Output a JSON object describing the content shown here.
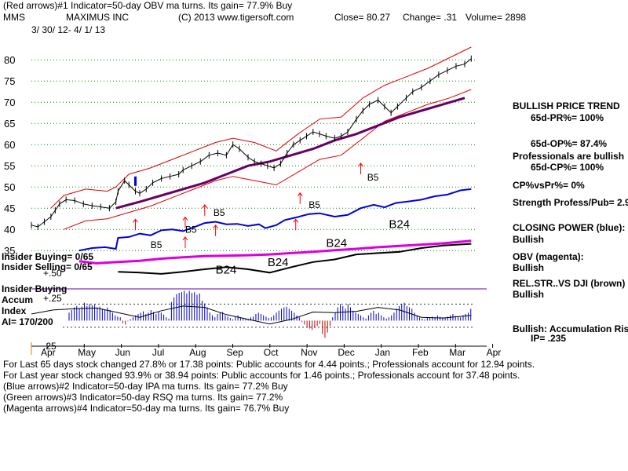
{
  "header": {
    "line1": "(Red arrows)#1 Indicator=50-day OBV ma turns. Its gain= 77.9% Buy",
    "symbol": "MMS",
    "company": "MAXIMUS INC",
    "copyright": "(C) 2013 www.tigersoft.com",
    "close": "Close=  80.27",
    "change": "Change= .31",
    "volume": "Volume= 2898",
    "date_range": "3/ 30/ 12-  4/ 1/ 13"
  },
  "right_panel": {
    "trend_title": "BULLISH PRICE TREND",
    "pr": "65d-PR%= 100%",
    "op": "65d-OP%= 87.4%",
    "pros_bullish": "Professionals are bullish",
    "cp": "65d-CP%= 100%",
    "cpvspr": "CP%vsPr%=  0%",
    "strength": "Strength Profess/Pub= 2.9",
    "closing_power": "CLOSING POWER (blue):",
    "closing_power_val": "Bullish",
    "obv": "OBV (magenta):",
    "obv_val": "Bullish",
    "relstr": "REL.STR..VS DJI (brown)",
    "relstr_val": "Bullish",
    "accum": "Bullish: Accumulation Rising",
    "ip": "IP=  .235"
  },
  "left_labels": {
    "insider_buying": "Insider Buying= 0/65",
    "insider_selling": "Insider Selling= 0/65",
    "insider_buying2": "Insider Buying",
    "accum": "Accum",
    "index": "Index",
    "ai": "AI= 170/200"
  },
  "footer": {
    "line1": "For Last 65 days stock changed  27.8% or  17.38 points:  Public accounts for  4.44 points.;  Professionals account for  12.94 points.",
    "line2": "For Last year stock changed  93.9% or  38.94 points:  Public accounts for  1.46 points.;  Professionals account for  37.48 points.",
    "line3": "(Blue arrows)#2 Indicator=50-day IPA ma turns. Its gain= 77.2% Buy",
    "line4": "(Green arrows)#3 Indicator=50-day RSQ ma turns. Its gain= 77.2%",
    "line5": "(Magenta arrows)#4 Indicator=50-day ma turns. Its gain= 76.7% Buy"
  },
  "colors": {
    "price": "#000000",
    "band": "#dd0000",
    "ma": "#660066",
    "closing_power": "#0000dd",
    "obv": "#dd00dd",
    "relstr": "#000000",
    "accum_pos": "#0000cc",
    "accum_neg": "#cc0000",
    "grid": "#008800",
    "arrow": "#ff0000"
  },
  "chart_data": {
    "type": "line",
    "title": "MAXIMUS INC (MMS)",
    "x_ticks": [
      "Apr",
      "May",
      "Jun",
      "Jul",
      "Aug",
      "Sep",
      "Oct",
      "Nov",
      "Dec",
      "Jan",
      "Feb",
      "Mar",
      "Apr"
    ],
    "y_ticks": [
      80,
      75,
      70,
      65,
      60,
      55,
      50,
      45,
      40,
      35
    ],
    "ylim": [
      33,
      83
    ],
    "accum_ticks": [
      "+.50",
      "+.25",
      ".25"
    ],
    "price_points": [
      [
        0,
        41
      ],
      [
        0.3,
        40.6
      ],
      [
        0.6,
        41.8
      ],
      [
        0.9,
        43
      ],
      [
        1.1,
        44.5
      ],
      [
        1.3,
        46
      ],
      [
        1.6,
        47
      ],
      [
        2,
        46.8
      ],
      [
        2.4,
        46
      ],
      [
        2.8,
        45.6
      ],
      [
        3.2,
        45.3
      ],
      [
        3.6,
        45
      ],
      [
        3.9,
        46.5
      ],
      [
        4,
        49
      ],
      [
        4.3,
        51.5
      ],
      [
        4.5,
        50.5
      ],
      [
        4.8,
        49
      ],
      [
        5,
        48.5
      ],
      [
        5.3,
        49.5
      ],
      [
        5.6,
        51
      ],
      [
        6,
        52
      ],
      [
        6.4,
        52.5
      ],
      [
        6.8,
        53
      ],
      [
        7,
        54
      ],
      [
        7.4,
        55
      ],
      [
        7.8,
        56
      ],
      [
        8.2,
        57.5
      ],
      [
        8.6,
        58
      ],
      [
        9,
        57.5
      ],
      [
        9.3,
        60
      ],
      [
        9.6,
        59
      ],
      [
        10,
        57
      ],
      [
        10.3,
        56
      ],
      [
        10.6,
        55.5
      ],
      [
        10.9,
        55
      ],
      [
        11.2,
        54.5
      ],
      [
        11.5,
        55.5
      ],
      [
        11.8,
        58
      ],
      [
        12.1,
        60
      ],
      [
        12.4,
        61
      ],
      [
        12.7,
        62
      ],
      [
        13,
        63
      ],
      [
        13.3,
        62.5
      ],
      [
        13.6,
        62
      ],
      [
        14,
        61.5
      ],
      [
        14.3,
        62
      ],
      [
        14.6,
        63
      ],
      [
        15,
        66
      ],
      [
        15.3,
        68
      ],
      [
        15.6,
        69.5
      ],
      [
        16,
        70.5
      ],
      [
        16.3,
        69
      ],
      [
        16.6,
        67.5
      ],
      [
        16.9,
        69
      ],
      [
        17.3,
        71
      ],
      [
        17.6,
        72.5
      ],
      [
        18,
        73.5
      ],
      [
        18.4,
        75
      ],
      [
        18.8,
        76.5
      ],
      [
        19.2,
        77.5
      ],
      [
        19.6,
        78.5
      ],
      [
        20,
        79
      ],
      [
        20.3,
        80.27
      ]
    ],
    "ma50_points": [
      [
        3.9,
        45
      ],
      [
        5,
        46.5
      ],
      [
        6,
        48
      ],
      [
        7,
        49.5
      ],
      [
        8,
        51
      ],
      [
        9,
        53
      ],
      [
        10,
        55
      ],
      [
        11,
        56
      ],
      [
        12,
        57.5
      ],
      [
        13,
        59
      ],
      [
        14,
        61
      ],
      [
        15,
        62.5
      ],
      [
        16,
        64.5
      ],
      [
        17,
        66.5
      ],
      [
        18,
        68
      ],
      [
        19,
        69.5
      ],
      [
        20,
        71
      ]
    ],
    "upper_band_points": [
      [
        0.9,
        45
      ],
      [
        1.5,
        48
      ],
      [
        2.5,
        49.5
      ],
      [
        3.5,
        49
      ],
      [
        3.9,
        50
      ],
      [
        4.5,
        53
      ],
      [
        5.5,
        54.5
      ],
      [
        6.5,
        56.5
      ],
      [
        7.5,
        58.5
      ],
      [
        8.5,
        60.5
      ],
      [
        9.3,
        61.5
      ],
      [
        10.3,
        60.5
      ],
      [
        11.3,
        58.5
      ],
      [
        12.3,
        62.5
      ],
      [
        13.3,
        66
      ],
      [
        14.3,
        66.5
      ],
      [
        15.3,
        71
      ],
      [
        16.3,
        74
      ],
      [
        17.3,
        76
      ],
      [
        18.3,
        78
      ],
      [
        19.3,
        80.5
      ],
      [
        20.3,
        83
      ]
    ],
    "lower_band_points": [
      [
        1.5,
        40
      ],
      [
        2.5,
        42
      ],
      [
        3.5,
        42.5
      ],
      [
        4.5,
        44
      ],
      [
        5.5,
        45.5
      ],
      [
        6.5,
        47.5
      ],
      [
        7.5,
        49.5
      ],
      [
        8.5,
        51.5
      ],
      [
        9.3,
        52.5
      ],
      [
        10.3,
        51.5
      ],
      [
        11.3,
        50.5
      ],
      [
        12.3,
        53.5
      ],
      [
        13.3,
        56.5
      ],
      [
        14.3,
        57.5
      ],
      [
        15.3,
        61.5
      ],
      [
        16.3,
        65.5
      ],
      [
        17.3,
        67.5
      ],
      [
        18.3,
        69.5
      ],
      [
        19.3,
        71
      ],
      [
        20.3,
        73
      ]
    ],
    "closing_power_points": [
      [
        2.2,
        35
      ],
      [
        2.8,
        35.6
      ],
      [
        3.4,
        35.8
      ],
      [
        3.9,
        35.4
      ],
      [
        4,
        38
      ],
      [
        4.5,
        38.2
      ],
      [
        5,
        39
      ],
      [
        5.5,
        38.6
      ],
      [
        6,
        39.8
      ],
      [
        6.5,
        40
      ],
      [
        7,
        39.6
      ],
      [
        7.5,
        40.5
      ],
      [
        8,
        41.5
      ],
      [
        8.5,
        41.8
      ],
      [
        9,
        41.2
      ],
      [
        9.5,
        41.3
      ],
      [
        10,
        40.8
      ],
      [
        10.5,
        41.2
      ],
      [
        10.8,
        40.3
      ],
      [
        11.3,
        41
      ],
      [
        11.7,
        42.2
      ],
      [
        12.2,
        42.8
      ],
      [
        12.8,
        43.6
      ],
      [
        13.3,
        43.8
      ],
      [
        14,
        43
      ],
      [
        14.6,
        43.4
      ],
      [
        15.2,
        45
      ],
      [
        15.8,
        45.8
      ],
      [
        16.3,
        45.2
      ],
      [
        16.8,
        46.2
      ],
      [
        17.4,
        46.6
      ],
      [
        18,
        47
      ],
      [
        18.6,
        47.8
      ],
      [
        19.2,
        48.2
      ],
      [
        19.8,
        49.2
      ],
      [
        20.3,
        49.5
      ]
    ],
    "obv_points": [
      [
        2.2,
        32.5
      ],
      [
        3,
        32
      ],
      [
        4,
        32.3
      ],
      [
        5,
        32.6
      ],
      [
        6,
        33.1
      ],
      [
        7,
        33.4
      ],
      [
        8,
        33.7
      ],
      [
        9,
        33.8
      ],
      [
        10,
        33.9
      ],
      [
        11,
        34.1
      ],
      [
        12,
        34.4
      ],
      [
        13,
        34.7
      ],
      [
        14,
        35.1
      ],
      [
        15,
        35.4
      ],
      [
        16,
        35.8
      ],
      [
        17,
        36.1
      ],
      [
        18,
        36.4
      ],
      [
        19,
        36.7
      ],
      [
        20.3,
        37.3
      ]
    ],
    "relstr_points": [
      [
        4,
        30
      ],
      [
        5,
        29.8
      ],
      [
        6,
        29.5
      ],
      [
        7,
        30
      ],
      [
        8,
        30.6
      ],
      [
        9,
        31.1
      ],
      [
        10,
        30.6
      ],
      [
        11,
        29.8
      ],
      [
        12,
        31.1
      ],
      [
        13,
        32.3
      ],
      [
        14,
        32.9
      ],
      [
        15,
        34.1
      ],
      [
        16,
        34.4
      ],
      [
        17,
        34.7
      ],
      [
        18,
        35.6
      ],
      [
        19,
        36.2
      ],
      [
        20.3,
        36.6
      ]
    ],
    "signals": [
      {
        "label": "B5",
        "x": 5.5,
        "y": 35.6
      },
      {
        "label": "B5",
        "x": 7.1,
        "y": 39.2
      },
      {
        "label": "B5",
        "x": 8.4,
        "y": 43.2
      },
      {
        "label": "B5",
        "x": 12.8,
        "y": 45
      },
      {
        "label": "B5",
        "x": 15.5,
        "y": 51.5
      },
      {
        "label": "B24",
        "x": 8.5,
        "y": 29.6
      },
      {
        "label": "B24",
        "x": 10.9,
        "y": 31.3
      },
      {
        "label": "B24",
        "x": 13.6,
        "y": 35.9
      },
      {
        "label": "B24",
        "x": 16.5,
        "y": 40.3
      }
    ],
    "red_arrows": [
      [
        4.8,
        39.8
      ],
      [
        7.1,
        35.6
      ],
      [
        7.1,
        40.3
      ],
      [
        8,
        43.2
      ],
      [
        8.5,
        38.4
      ],
      [
        12.4,
        46
      ],
      [
        12.2,
        39.8
      ],
      [
        15.2,
        53
      ]
    ],
    "blue_arrows": [
      [
        4.8,
        51
      ]
    ],
    "accum_values": [
      0.12,
      0.16,
      0.2,
      0.22,
      0.19,
      0.21,
      0.27,
      0.22,
      0.25,
      0.23,
      0.24,
      0.2,
      0.21,
      0.18,
      0.17,
      0.2,
      0.16,
      0.12,
      0.08,
      0.06,
      0.05,
      -0.04,
      -0.06,
      -0.01,
      0.02,
      0.05,
      0.08,
      0.1,
      0.12,
      0.14,
      0.1,
      0.12,
      0.16,
      0.13,
      0.1,
      0.14,
      0.12,
      0.09,
      0.05,
      0.03,
      0.28,
      0.35,
      0.4,
      0.42,
      0.43,
      0.45,
      0.41,
      0.45,
      0.42,
      0.43,
      0.39,
      0.41,
      0.3,
      0.26,
      0.2,
      0.12,
      0.08,
      0.05,
      0.1,
      0.12,
      0.13,
      0.08,
      0.06,
      0.04,
      0.02,
      0.06,
      0.08,
      0.05,
      0.04,
      0.03,
      0.02,
      0.05,
      0.06,
      0.1,
      0.12,
      0.1,
      0.08,
      0.06,
      0.04,
      0.05,
      0.08,
      0.12,
      0.15,
      0.18,
      0.2,
      0.21,
      0.18,
      0.15,
      0.12,
      0.08,
      0.05,
      -0.02,
      -0.06,
      -0.1,
      -0.12,
      -0.14,
      -0.11,
      -0.08,
      -0.05,
      -0.2,
      -0.26,
      -0.18,
      -0.08,
      0.05,
      0.12,
      0.2,
      0.25,
      0.22,
      0.18,
      0.25,
      0.2,
      0.15,
      0.12,
      0.1,
      0.08,
      0.05,
      0.03,
      0.08,
      0.12,
      0.15,
      0.1,
      0.12,
      0.08,
      0.05,
      0.03,
      0.05,
      0.08,
      0.12,
      0.18,
      0.22,
      0.25,
      0.27,
      0.22,
      0.2,
      0.18,
      0.12,
      0.08,
      0.05,
      0.03,
      0.02,
      0.05,
      0.04,
      0.06,
      0.05,
      0.08,
      0.06,
      0.05,
      0.04,
      0.06,
      0.08,
      0.1,
      0.07,
      0.06,
      0.05,
      0.08,
      0.1,
      0.12,
      0.18
    ],
    "accum_ma_points": [
      [
        0,
        0.1
      ],
      [
        1,
        0.16
      ],
      [
        2,
        0.18
      ],
      [
        3,
        0.19
      ],
      [
        4,
        0.12
      ],
      [
        5,
        0.05
      ],
      [
        6,
        0.15
      ],
      [
        7,
        0.22
      ],
      [
        8,
        0.2
      ],
      [
        9,
        0.09
      ],
      [
        10,
        0.02
      ],
      [
        11,
        -0.05
      ],
      [
        12,
        0.02
      ],
      [
        13,
        0.13
      ],
      [
        14,
        0.12
      ],
      [
        15,
        0.14
      ],
      [
        16,
        0.2
      ],
      [
        17,
        0.16
      ],
      [
        18,
        0.05
      ],
      [
        19,
        0.04
      ],
      [
        20.3,
        0.08
      ]
    ],
    "accum_hlines": [
      0.25,
      -0.1
    ],
    "accum_ylim": [
      -0.35,
      0.55
    ]
  }
}
